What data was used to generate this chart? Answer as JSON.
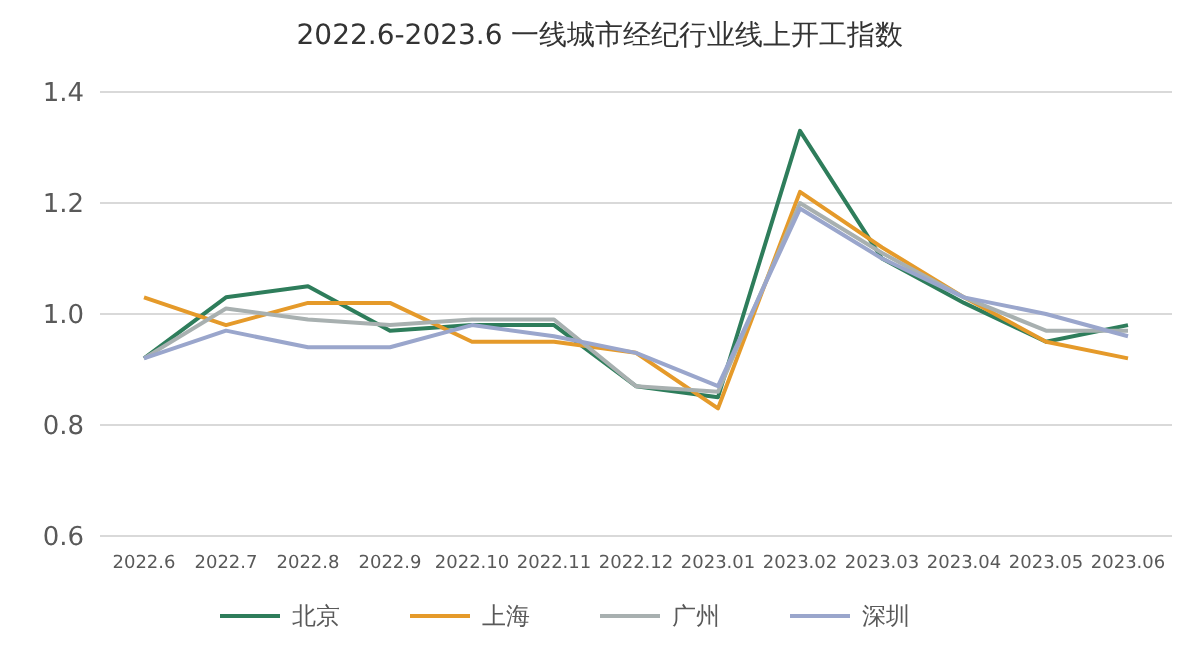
{
  "chart_data": {
    "type": "line",
    "title": "2022.6-2023.6 一线城市经纪行业线上开工指数",
    "categories": [
      "2022.6",
      "2022.7",
      "2022.8",
      "2022.9",
      "2022.10",
      "2022.11",
      "2022.12",
      "2023.01",
      "2023.02",
      "2023.03",
      "2023.04",
      "2023.05",
      "2023.06"
    ],
    "series": [
      {
        "name": "北京",
        "color": "#2e7d5b",
        "values": [
          0.92,
          1.03,
          1.05,
          0.97,
          0.98,
          0.98,
          0.87,
          0.85,
          1.33,
          1.1,
          1.02,
          0.95,
          0.98
        ]
      },
      {
        "name": "上海",
        "color": "#e59a2a",
        "values": [
          1.03,
          0.98,
          1.02,
          1.02,
          0.95,
          0.95,
          0.93,
          0.83,
          1.22,
          1.12,
          1.03,
          0.95,
          0.92
        ]
      },
      {
        "name": "广州",
        "color": "#a8b0b0",
        "values": [
          0.92,
          1.01,
          0.99,
          0.98,
          0.99,
          0.99,
          0.87,
          0.86,
          1.2,
          1.11,
          1.03,
          0.97,
          0.97
        ]
      },
      {
        "name": "深圳",
        "color": "#9aa6cc",
        "values": [
          0.92,
          0.97,
          0.94,
          0.94,
          0.98,
          0.96,
          0.93,
          0.87,
          1.19,
          1.1,
          1.03,
          1.0,
          0.96
        ]
      }
    ],
    "ylim": [
      0.6,
      1.4
    ],
    "yticks": [
      0.6,
      0.8,
      {
        "value": 1,
        "label": "1.0"
      },
      1.2,
      1.4
    ],
    "grid": "y",
    "legend": "bottom",
    "marker": "none",
    "line_style": "solid"
  }
}
